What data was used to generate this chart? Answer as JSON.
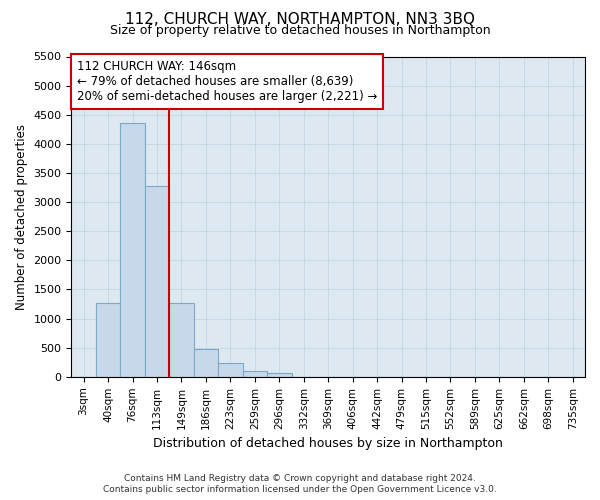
{
  "title": "112, CHURCH WAY, NORTHAMPTON, NN3 3BQ",
  "subtitle": "Size of property relative to detached houses in Northampton",
  "xlabel": "Distribution of detached houses by size in Northampton",
  "ylabel": "Number of detached properties",
  "footer_line1": "Contains HM Land Registry data © Crown copyright and database right 2024.",
  "footer_line2": "Contains public sector information licensed under the Open Government Licence v3.0.",
  "categories": [
    "3sqm",
    "40sqm",
    "76sqm",
    "113sqm",
    "149sqm",
    "186sqm",
    "223sqm",
    "259sqm",
    "296sqm",
    "332sqm",
    "369sqm",
    "406sqm",
    "442sqm",
    "479sqm",
    "515sqm",
    "552sqm",
    "589sqm",
    "625sqm",
    "662sqm",
    "698sqm",
    "735sqm"
  ],
  "bar_values": [
    0,
    1270,
    4350,
    3270,
    1270,
    480,
    230,
    100,
    65,
    0,
    0,
    0,
    0,
    0,
    0,
    0,
    0,
    0,
    0,
    0,
    0
  ],
  "bar_color": "#c6d8ea",
  "bar_edge_color": "#7aaac8",
  "ylim": [
    0,
    5500
  ],
  "yticks": [
    0,
    500,
    1000,
    1500,
    2000,
    2500,
    3000,
    3500,
    4000,
    4500,
    5000,
    5500
  ],
  "vline_x": 3.5,
  "vline_color": "#cc0000",
  "annotation_title": "112 CHURCH WAY: 146sqm",
  "annotation_line1": "← 79% of detached houses are smaller (8,639)",
  "annotation_line2": "20% of semi-detached houses are larger (2,221) →",
  "grid_color": "#c5d5e5",
  "background_color": "#dde8f0",
  "fig_width": 6.0,
  "fig_height": 5.0,
  "dpi": 100
}
